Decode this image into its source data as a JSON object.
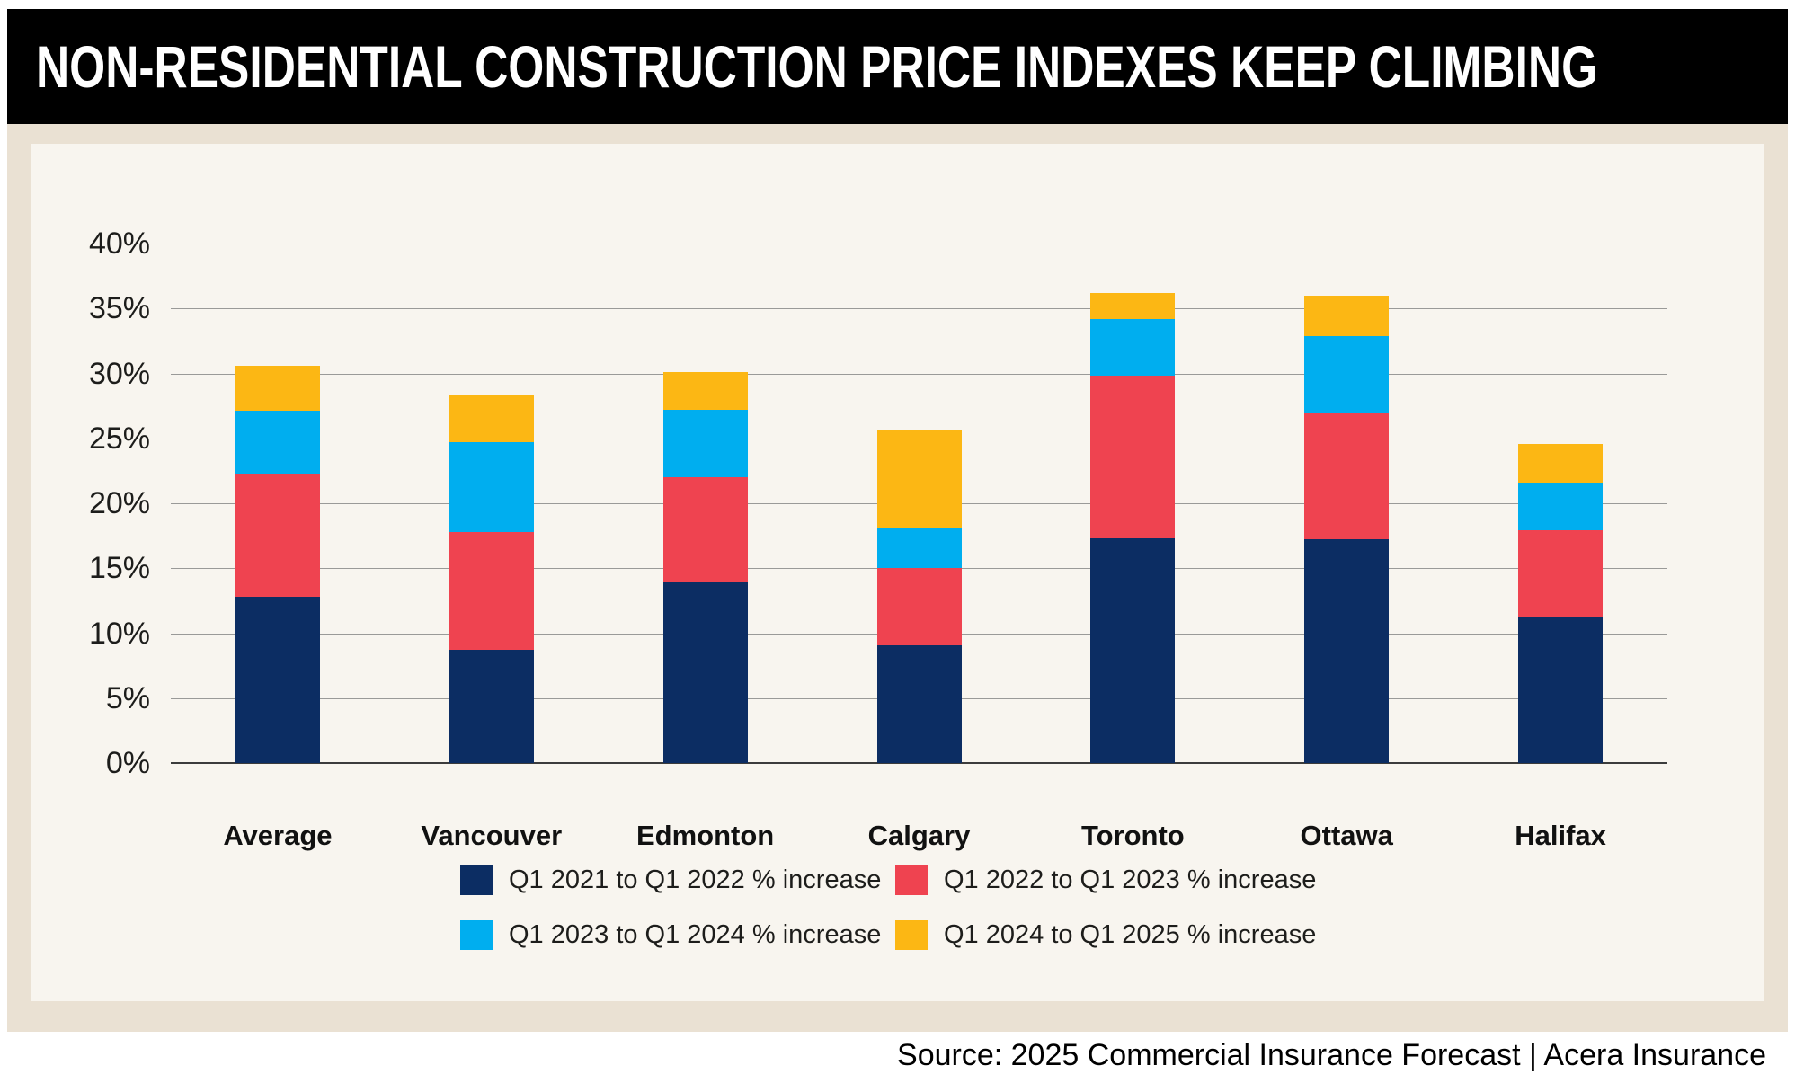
{
  "header": {
    "title": "NON-RESIDENTIAL CONSTRUCTION PRICE INDEXES KEEP CLIMBING"
  },
  "footer": {
    "source": "Source: 2025 Commercial Insurance Forecast | Acera Insurance"
  },
  "colors": {
    "page_bg": "#ffffff",
    "header_bg": "#000000",
    "header_text": "#ffffff",
    "outer_bg": "#eae1d3",
    "panel_bg": "#f8f5ef",
    "gridline": "#9a9a98",
    "axis": "#3c3c3c",
    "text": "#1d1d1b"
  },
  "chart_data": {
    "type": "bar",
    "stacked": true,
    "title": "NON-RESIDENTIAL CONSTRUCTION PRICE INDEXES KEEP CLIMBING",
    "categories": [
      "Average",
      "Vancouver",
      "Edmonton",
      "Calgary",
      "Toronto",
      "Ottawa",
      "Halifax"
    ],
    "series": [
      {
        "name": "Q1 2021 to Q1 2022 % increase",
        "color": "#0c2d63",
        "values": [
          12.8,
          8.7,
          13.9,
          9.1,
          17.3,
          17.2,
          11.2
        ]
      },
      {
        "name": "Q1 2022 to Q1 2023 % increase",
        "color": "#ef4350",
        "values": [
          9.5,
          9.1,
          8.1,
          5.9,
          12.5,
          9.7,
          6.7
        ]
      },
      {
        "name": "Q1 2023 to Q1 2024 % increase",
        "color": "#00aeef",
        "values": [
          4.8,
          6.9,
          5.2,
          3.1,
          4.4,
          6.0,
          3.7
        ]
      },
      {
        "name": "Q1 2024 to Q1 2025 % increase",
        "color": "#fcb714",
        "values": [
          3.5,
          3.6,
          2.9,
          7.5,
          2.0,
          3.1,
          3.0
        ]
      }
    ],
    "stack_totals": [
      30.6,
      28.3,
      30.1,
      25.6,
      36.2,
      36.0,
      24.6
    ],
    "ylim": [
      0,
      40
    ],
    "ytick_step": 5,
    "ytick_labels": [
      "0%",
      "5%",
      "10%",
      "15%",
      "20%",
      "25%",
      "30%",
      "35%",
      "40%"
    ],
    "grid": true,
    "legend_position": "bottom",
    "xlabel": "",
    "ylabel": ""
  }
}
